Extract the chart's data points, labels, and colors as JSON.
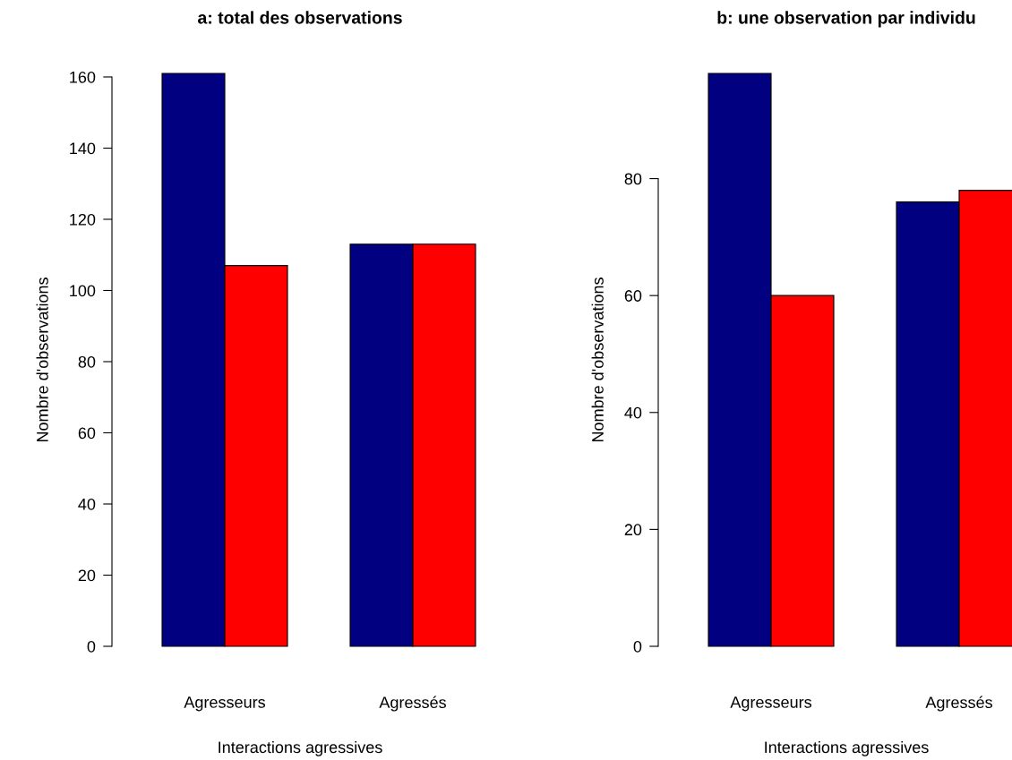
{
  "chart_data": [
    {
      "type": "bar",
      "title": "a: total des observations",
      "xlabel": "Interactions agressives",
      "ylabel": "Nombre d'observations",
      "categories": [
        "Agresseurs",
        "Agressés"
      ],
      "series": [
        {
          "color": "#000080",
          "values": [
            161,
            113
          ]
        },
        {
          "color": "#ff0000",
          "values": [
            107,
            113
          ]
        }
      ],
      "ylim": [
        0,
        161
      ],
      "yticks": [
        0,
        20,
        40,
        60,
        80,
        100,
        120,
        140,
        160
      ],
      "grid": false
    },
    {
      "type": "bar",
      "title": "b: une observation par individu",
      "xlabel": "Interactions agressives",
      "ylabel": "Nombre d'observations",
      "categories": [
        "Agresseurs",
        "Agressés"
      ],
      "series": [
        {
          "color": "#000080",
          "values": [
            98,
            76
          ]
        },
        {
          "color": "#ff0000",
          "values": [
            60,
            78
          ]
        }
      ],
      "ylim": [
        0,
        98
      ],
      "yticks": [
        0,
        20,
        40,
        60,
        80
      ],
      "grid": false
    }
  ]
}
